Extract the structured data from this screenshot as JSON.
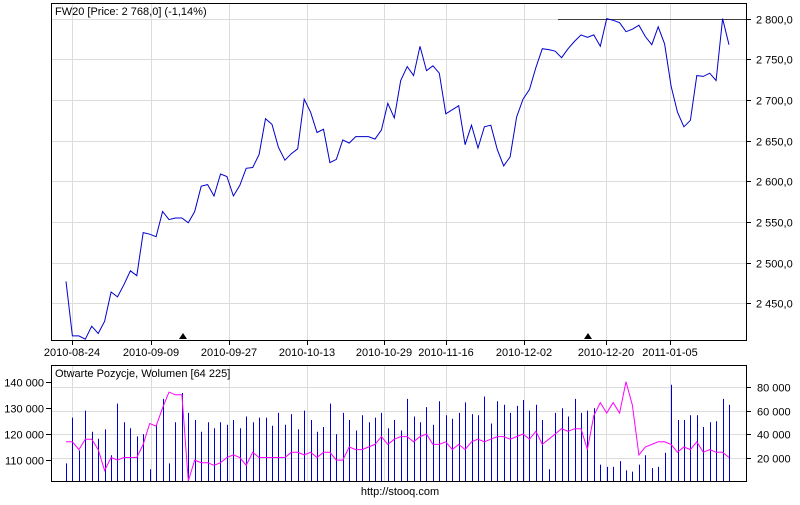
{
  "chart_data": [
    {
      "type": "line",
      "title": "FW20 [Price: 2 768,0] (-1,14%)",
      "x_ticks": [
        "2010-08-24",
        "2010-09-09",
        "2010-09-27",
        "2010-10-13",
        "2010-10-29",
        "2010-11-16",
        "2010-12-02",
        "2010-12-20",
        "2011-01-05"
      ],
      "y_ticks": [
        "2 800,0",
        "2 750,0",
        "2 700,0",
        "2 650,0",
        "2 600,0",
        "2 550,0",
        "2 500,0",
        "2 450,0"
      ],
      "ylim": [
        2405,
        2818
      ],
      "grid": true,
      "reference_level": 2800,
      "series": [
        {
          "color": "#0000cc",
          "values": [
            2477,
            2410,
            2410,
            2406,
            2422,
            2413,
            2428,
            2464,
            2458,
            2473,
            2490,
            2484,
            2537,
            2535,
            2532,
            2563,
            2553,
            2555,
            2555,
            2549,
            2563,
            2594,
            2596,
            2582,
            2609,
            2606,
            2582,
            2595,
            2616,
            2617,
            2633,
            2677,
            2670,
            2642,
            2626,
            2634,
            2640,
            2701,
            2685,
            2660,
            2664,
            2623,
            2627,
            2651,
            2647,
            2655,
            2655,
            2655,
            2652,
            2663,
            2696,
            2678,
            2724,
            2741,
            2730,
            2766,
            2736,
            2742,
            2733,
            2683,
            2688,
            2693,
            2645,
            2669,
            2641,
            2667,
            2669,
            2639,
            2619,
            2630,
            2679,
            2701,
            2713,
            2740,
            2763,
            2762,
            2760,
            2752,
            2763,
            2772,
            2780,
            2777,
            2780,
            2766,
            2800,
            2798,
            2795,
            2784,
            2787,
            2792,
            2778,
            2768,
            2790,
            2769,
            2717,
            2685,
            2667,
            2675,
            2730,
            2729,
            2733,
            2724,
            2800,
            2768
          ]
        }
      ]
    },
    {
      "type": "bar",
      "title": "Otwarte Pozycje, Wolumen [64 225]",
      "x_ticks": [
        "2010-08-24",
        "2010-09-09",
        "2010-09-27",
        "2010-10-13",
        "2010-10-29",
        "2010-11-16",
        "2010-12-02",
        "2010-12-20",
        "2011-01-05"
      ],
      "y_ticks_left": [
        "140 000",
        "130 000",
        "120 000",
        "110 000"
      ],
      "y_ticks_right": [
        "80 000",
        "60 000",
        "40 000",
        "20 000"
      ],
      "left_range": [
        102000,
        146000
      ],
      "right_range": [
        0,
        98000
      ],
      "series": [
        {
          "name": "Wolumen",
          "color": "#0000cc",
          "values": [
            15000,
            54000,
            26000,
            60000,
            42000,
            36000,
            44000,
            22000,
            66000,
            50000,
            45000,
            38000,
            40000,
            10000,
            48000,
            70000,
            15000,
            50000,
            75000,
            58000,
            52000,
            42000,
            50000,
            45000,
            50000,
            48000,
            52000,
            45000,
            55000,
            50000,
            54000,
            54000,
            47000,
            58000,
            48000,
            57000,
            44000,
            60000,
            52000,
            42000,
            46000,
            66000,
            40000,
            58000,
            52000,
            43000,
            56000,
            50000,
            54000,
            58000,
            45000,
            52000,
            43000,
            70000,
            55000,
            50000,
            63000,
            48000,
            68000,
            56000,
            53000,
            58000,
            67000,
            57000,
            56000,
            72000,
            49000,
            68000,
            65000,
            58000,
            64000,
            69000,
            60000,
            65000,
            52000,
            10000,
            58000,
            62000,
            55000,
            70000,
            58000,
            60000,
            62000,
            14000,
            12000,
            12000,
            17000,
            9000,
            8000,
            14000,
            22000,
            11000,
            12000,
            24000,
            82000,
            52000,
            52000,
            56000,
            56000,
            46000,
            50000,
            51000,
            70000,
            65000
          ]
        },
        {
          "name": "Otwarte Pozycje",
          "color": "#ff00ff",
          "values": [
            117000,
            117000,
            114000,
            118000,
            118000,
            114000,
            106000,
            111000,
            110000,
            111000,
            111000,
            111000,
            116000,
            124000,
            123000,
            130000,
            136000,
            135000,
            135000,
            102000,
            110000,
            109000,
            109000,
            108000,
            109000,
            111000,
            112000,
            111000,
            108000,
            113000,
            111000,
            111000,
            111000,
            111000,
            111000,
            113000,
            113000,
            112000,
            113000,
            111000,
            113000,
            113000,
            110000,
            110000,
            115000,
            114000,
            114000,
            115000,
            116000,
            119000,
            116000,
            118000,
            119000,
            119000,
            117000,
            119000,
            120000,
            116000,
            116000,
            117000,
            114000,
            116000,
            114000,
            117000,
            118000,
            117000,
            118000,
            119000,
            119000,
            118000,
            119000,
            120000,
            118000,
            121000,
            116000,
            118000,
            120000,
            122000,
            121000,
            122000,
            122000,
            114000,
            127000,
            132000,
            128000,
            132000,
            128000,
            140000,
            131000,
            112000,
            115000,
            116000,
            117000,
            117000,
            116000,
            113000,
            115000,
            114000,
            117000,
            113000,
            114000,
            113000,
            113000,
            111000
          ]
        }
      ]
    }
  ],
  "footer": {
    "source": "http://stooq.com"
  }
}
